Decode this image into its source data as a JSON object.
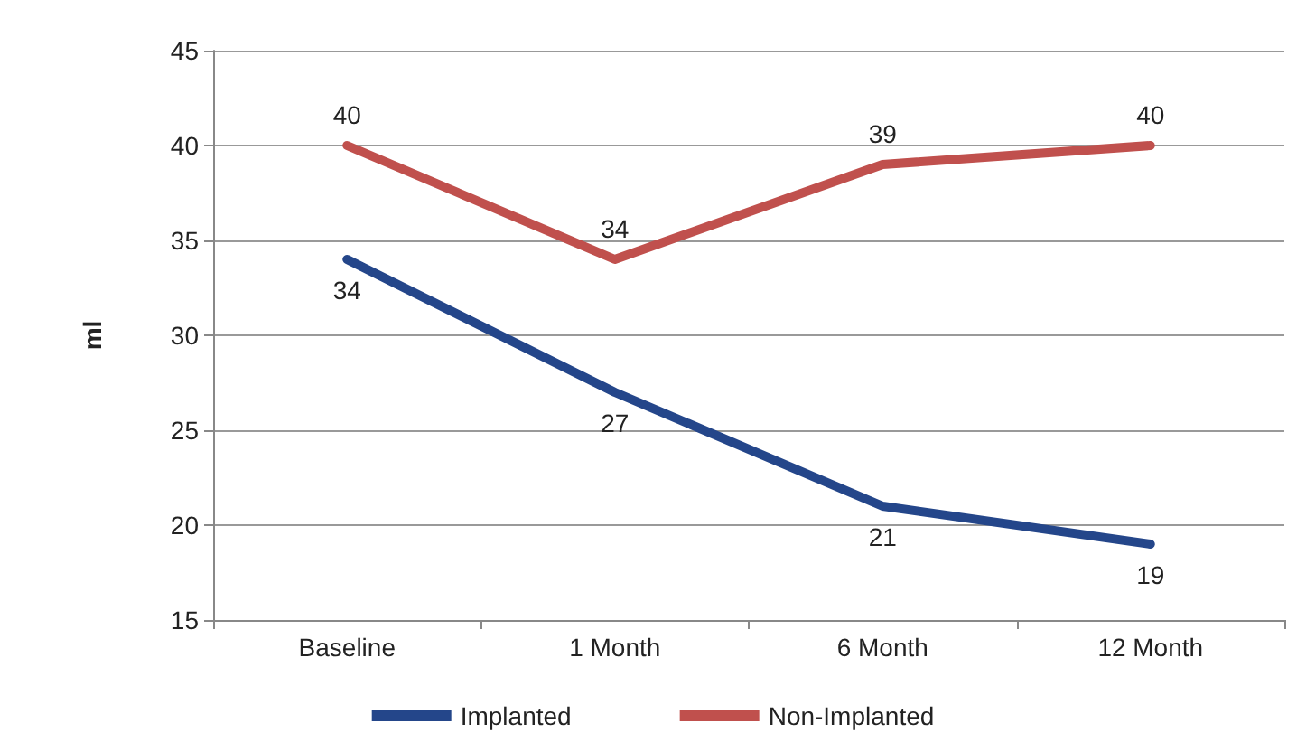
{
  "chart_data": {
    "type": "line",
    "ylabel": "ml",
    "categories": [
      "Baseline",
      "1 Month",
      "6 Month",
      "12 Month"
    ],
    "series": [
      {
        "name": "Implanted",
        "color": "#24468a",
        "values": [
          34,
          27,
          21,
          19
        ]
      },
      {
        "name": "Non-Implanted",
        "color": "#c0504d",
        "values": [
          40,
          34,
          39,
          40
        ]
      }
    ],
    "ylim": [
      15,
      45
    ],
    "yticks": [
      15,
      20,
      25,
      30,
      35,
      40,
      45
    ],
    "grid": "y",
    "legend": "bottom",
    "data_labels": true,
    "marker": "none",
    "line_style": "solid"
  }
}
